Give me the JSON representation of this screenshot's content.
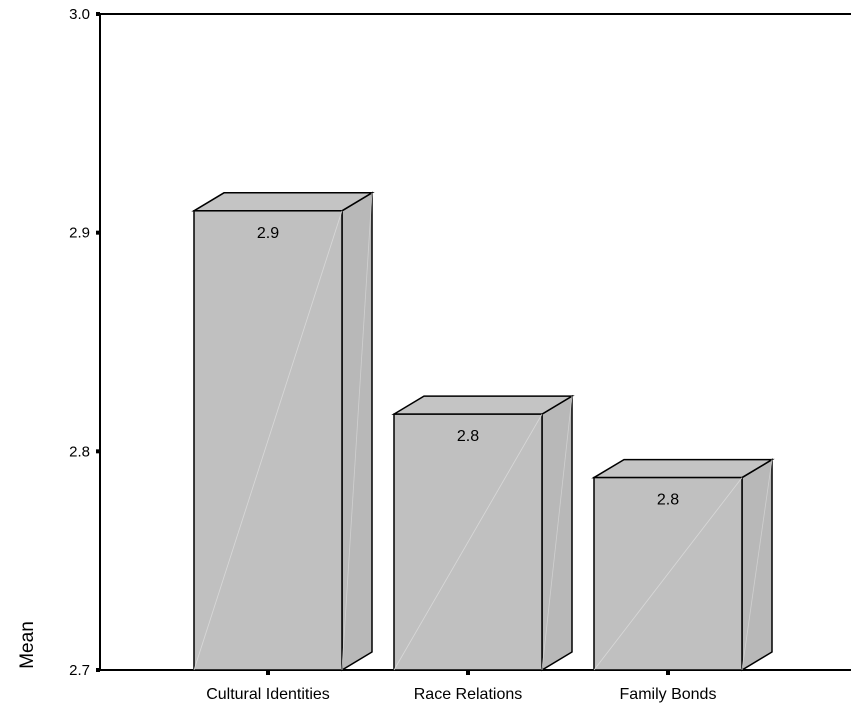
{
  "chart_data": {
    "type": "bar",
    "style": "3d",
    "title": "",
    "xlabel": "",
    "ylabel": "Mean",
    "ylim": [
      2.7,
      3.0
    ],
    "yticks": [
      "2.7",
      "2.8",
      "2.9",
      "3.0"
    ],
    "categories": [
      "Cultural Identities",
      "Race Relations",
      "Family Bonds"
    ],
    "values": [
      2.91,
      2.817,
      2.788
    ],
    "data_labels": [
      "2.9",
      "2.8",
      "2.8"
    ],
    "grid": false,
    "legend": "none",
    "colors": {
      "bar_front": "#c0c0c0",
      "bar_top": "#c4c4c4",
      "bar_side": "#b8b8b8",
      "outline": "#000000",
      "axis": "#000000"
    }
  }
}
